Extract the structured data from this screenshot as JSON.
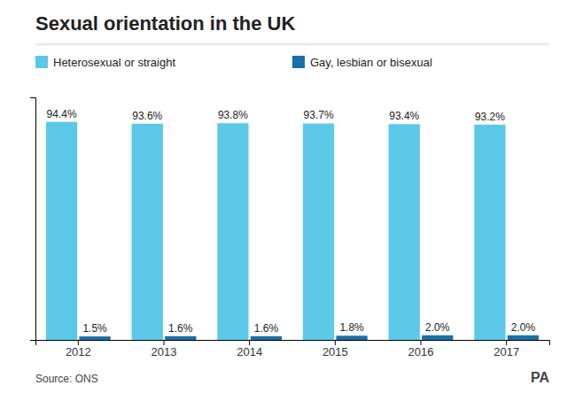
{
  "chart_data": {
    "type": "bar",
    "title": "Sexual orientation in the UK",
    "categories": [
      "2012",
      "2013",
      "2014",
      "2015",
      "2016",
      "2017"
    ],
    "series": [
      {
        "name": "Heterosexual or straight",
        "color": "#5BC8E8",
        "values": [
          94.4,
          93.6,
          93.8,
          93.7,
          93.4,
          93.2
        ],
        "value_labels": [
          "94.4%",
          "93.6%",
          "93.8%",
          "93.7%",
          "93.4%",
          "93.2%"
        ]
      },
      {
        "name": "Gay, lesbian or bisexual",
        "color": "#1B6FA8",
        "values": [
          1.5,
          1.6,
          1.6,
          1.8,
          2.0,
          2.0
        ],
        "value_labels": [
          "1.5%",
          "1.6%",
          "1.6%",
          "1.8%",
          "2.0%",
          "2.0%"
        ]
      }
    ],
    "ylim": [
      0,
      105
    ],
    "yticks": [],
    "tick_labels": "x",
    "data_labels": true,
    "grid": false,
    "annotations": [
      "Source: ONS",
      "PA"
    ]
  }
}
